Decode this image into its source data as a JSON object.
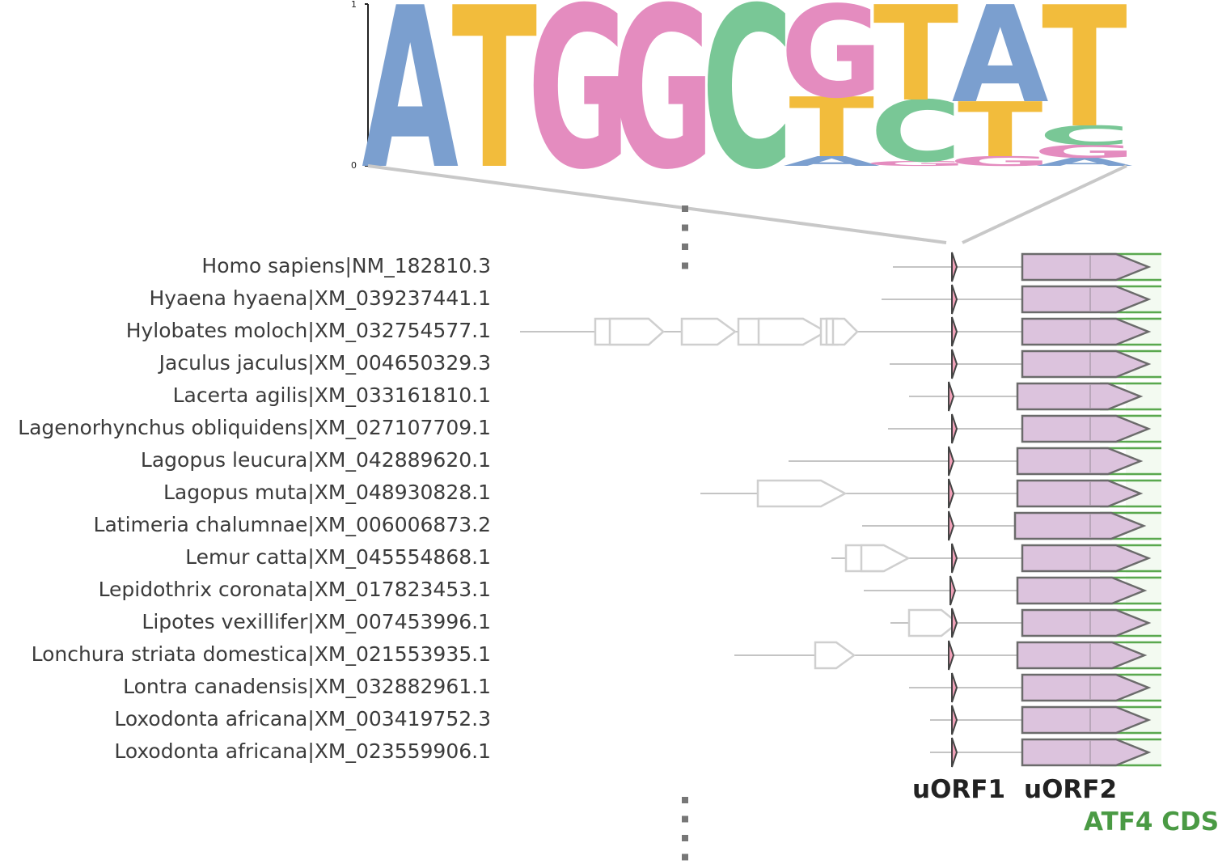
{
  "logo": {
    "y_ticks": [
      "0",
      "1"
    ],
    "colors": {
      "A": "#7b9fcf",
      "T": "#f2bc3c",
      "G": "#e48cbf",
      "C": "#79c796"
    },
    "positions": [
      [
        {
          "letter": "A",
          "value": 1.0
        }
      ],
      [
        {
          "letter": "T",
          "value": 1.0
        }
      ],
      [
        {
          "letter": "G",
          "value": 1.0
        }
      ],
      [
        {
          "letter": "G",
          "value": 1.0
        }
      ],
      [
        {
          "letter": "C",
          "value": 1.0
        }
      ],
      [
        {
          "letter": "A",
          "value": 0.06
        },
        {
          "letter": "T",
          "value": 0.37
        },
        {
          "letter": "G",
          "value": 0.57
        }
      ],
      [
        {
          "letter": "G",
          "value": 0.03
        },
        {
          "letter": "C",
          "value": 0.38
        },
        {
          "letter": "T",
          "value": 0.59
        }
      ],
      [
        {
          "letter": "G",
          "value": 0.06
        },
        {
          "letter": "T",
          "value": 0.34
        },
        {
          "letter": "A",
          "value": 0.6
        }
      ],
      [
        {
          "letter": "A",
          "value": 0.05
        },
        {
          "letter": "G",
          "value": 0.08
        },
        {
          "letter": "C",
          "value": 0.12
        },
        {
          "letter": "T",
          "value": 0.75
        }
      ]
    ]
  },
  "sequences": [
    "Homo sapiens|NM_182810.3",
    "Hyaena hyaena|XM_039237441.1",
    "Hylobates moloch|XM_032754577.1",
    "Jaculus jaculus|XM_004650329.3",
    "Lacerta agilis|XM_033161810.1",
    "Lagenorhynchus obliquidens|XM_027107709.1",
    "Lagopus leucura|XM_042889620.1",
    "Lagopus muta|XM_048930828.1",
    "Latimeria chalumnae|XM_006006873.2",
    "Lemur catta|XM_045554868.1",
    "Lepidothrix coronata|XM_017823453.1",
    "Lipotes vexillifer|XM_007453996.1",
    "Lonchura striata domestica|XM_021553935.1",
    "Lontra canadensis|XM_032882961.1",
    "Loxodonta africana|XM_003419752.3",
    "Loxodonta africana|XM_023559906.1"
  ],
  "labels": {
    "uorf1": "uORF1",
    "uorf2": "uORF2",
    "cds": "ATF4 CDS"
  },
  "colors": {
    "uorf2_fill": "#dcc3dd",
    "uorf2_stroke": "#6b6b6b",
    "uorf1_fill": "#f0a0b8",
    "cds_line": "#5aa84f",
    "track_line": "#c4c4c4",
    "other_orf": "#cfcfcf",
    "ellipsis": "#777777"
  }
}
